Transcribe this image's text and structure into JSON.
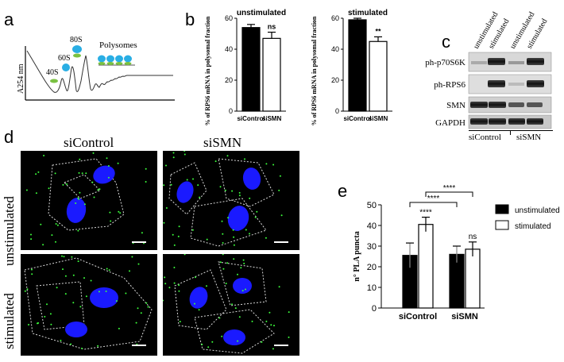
{
  "panel_letters": {
    "a": "a",
    "b": "b",
    "c": "c",
    "d": "d",
    "e": "e"
  },
  "panel_a": {
    "ylabel": "A254 nm",
    "peaks": [
      "40S",
      "60S",
      "80S"
    ],
    "polysomes_label": "Polysomes"
  },
  "colors": {
    "ribosome_blue": "#29aee4",
    "ribosome_green": "#7ac142",
    "nucleus_blue": "#1a1aff",
    "pla_green": "#3cff3c"
  },
  "chart_data": [
    {
      "type": "bar",
      "title": "unstimulated",
      "ylabel": "% of RPS6 mRNA in polysomal fraction",
      "categories": [
        "siControl",
        "siSMN"
      ],
      "values": [
        54,
        47
      ],
      "errors": [
        2,
        4
      ],
      "ylim": [
        0,
        60
      ],
      "yticks": [
        0,
        20,
        40,
        60
      ],
      "significance": [
        "",
        "ns"
      ],
      "bar_colors": [
        "#000000",
        "#ffffff"
      ]
    },
    {
      "type": "bar",
      "title": "stimulated",
      "ylabel": "% of RPS6 mRNA in polysomal fraction",
      "categories": [
        "siControl",
        "siSMN"
      ],
      "values": [
        59,
        45
      ],
      "errors": [
        1,
        3
      ],
      "ylim": [
        0,
        60
      ],
      "yticks": [
        0,
        20,
        40,
        60
      ],
      "significance": [
        "",
        "**"
      ],
      "bar_colors": [
        "#000000",
        "#ffffff"
      ]
    },
    {
      "type": "bar",
      "ylabel": "n° PLA puncta",
      "categories": [
        "siControl",
        "siSMN"
      ],
      "series": [
        {
          "name": "unstimulated",
          "values": [
            25.5,
            26
          ],
          "errors": [
            6,
            4
          ],
          "color": "#000000"
        },
        {
          "name": "stimulated",
          "values": [
            40.5,
            28.5
          ],
          "errors": [
            3.5,
            3.5
          ],
          "color": "#ffffff"
        }
      ],
      "ylim": [
        0,
        50
      ],
      "yticks": [
        0,
        10,
        20,
        30,
        40,
        50
      ],
      "annotations": [
        "****",
        "****",
        "****",
        "ns"
      ],
      "legend_position": "right"
    }
  ],
  "panel_c": {
    "column_headers": [
      "unstimulated",
      "stimulated",
      "unstimulated",
      "stimulated"
    ],
    "rows": [
      "ph-p70S6K",
      "ph-RPS6",
      "SMN",
      "GAPDH"
    ],
    "groups": [
      "siControl",
      "siSMN"
    ]
  },
  "panel_d": {
    "col_labels": [
      "siControl",
      "siSMN"
    ],
    "row_labels": [
      "unstimulated",
      "stimulated"
    ]
  }
}
